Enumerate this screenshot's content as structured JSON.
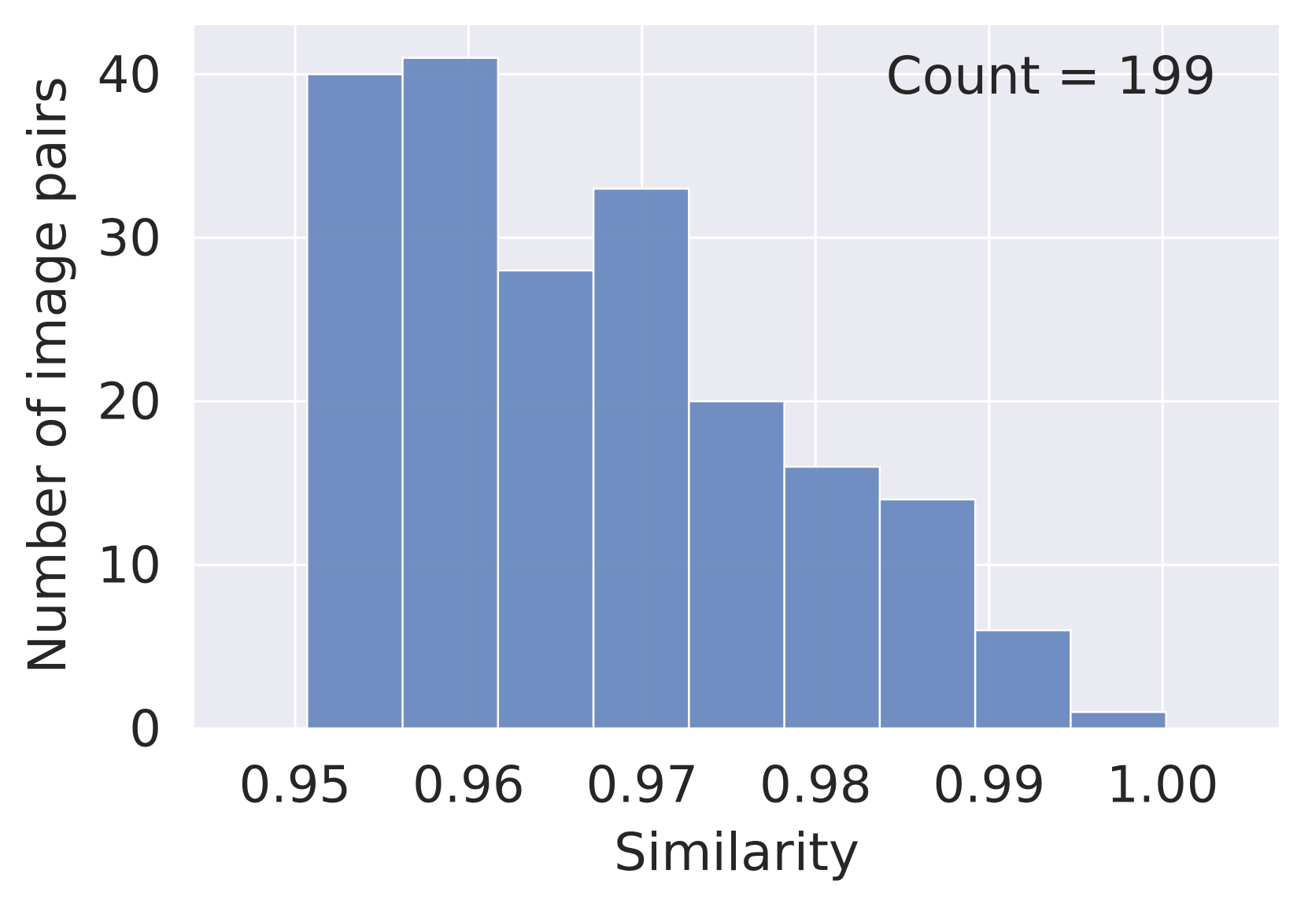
{
  "chart_data": {
    "type": "bar",
    "subtype": "histogram",
    "bins": [
      {
        "start": 0.9507,
        "end": 0.9562,
        "count": 40
      },
      {
        "start": 0.9562,
        "end": 0.9617,
        "count": 41
      },
      {
        "start": 0.9617,
        "end": 0.9672,
        "count": 28
      },
      {
        "start": 0.9672,
        "end": 0.9727,
        "count": 33
      },
      {
        "start": 0.9727,
        "end": 0.9782,
        "count": 20
      },
      {
        "start": 0.9782,
        "end": 0.9837,
        "count": 16
      },
      {
        "start": 0.9837,
        "end": 0.9892,
        "count": 14
      },
      {
        "start": 0.9892,
        "end": 0.9947,
        "count": 6
      },
      {
        "start": 0.9947,
        "end": 1.0002,
        "count": 1
      }
    ],
    "xlabel": "Similarity",
    "ylabel": "Number of image pairs",
    "annotation": "Count = 199",
    "xlim": [
      0.9442,
      1.0067
    ],
    "ylim": [
      0,
      43
    ],
    "xticks": [
      0.95,
      0.96,
      0.97,
      0.98,
      0.99,
      1.0
    ],
    "xtick_labels": [
      "0.95",
      "0.96",
      "0.97",
      "0.98",
      "0.99",
      "1.00"
    ],
    "yticks": [
      0,
      10,
      20,
      30,
      40
    ],
    "ytick_labels": [
      "0",
      "10",
      "20",
      "30",
      "40"
    ],
    "grid": true,
    "legend": false,
    "colors": {
      "bar": "#6a89bf",
      "bar_edge": "#ffffff",
      "background": "#eaeaf2",
      "grid": "#ffffff",
      "text": "#262626"
    }
  }
}
